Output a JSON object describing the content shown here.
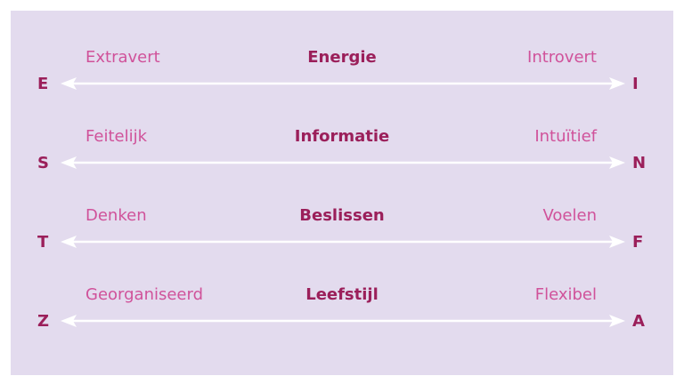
{
  "dimensions": [
    {
      "title": "Energie",
      "left": "Extravert",
      "right": "Introvert",
      "left_letter": "E",
      "right_letter": "I"
    },
    {
      "title": "Informatie",
      "left": "Feitelijk",
      "right": "Intuïtief",
      "left_letter": "S",
      "right_letter": "N"
    },
    {
      "title": "Beslissen",
      "left": "Denken",
      "right": "Voelen",
      "left_letter": "T",
      "right_letter": "F"
    },
    {
      "title": "Leefstijl",
      "left": "Georganiseerd",
      "right": "Flexibel",
      "left_letter": "Z",
      "right_letter": "A"
    }
  ],
  "colors": {
    "background": "#e3dbee",
    "pole_label": "#d0529a",
    "title": "#9b1f5a",
    "arrow": "#ffffff"
  }
}
